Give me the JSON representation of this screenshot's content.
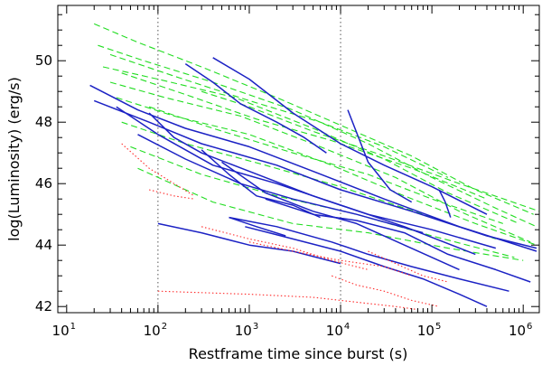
{
  "chart_data": {
    "type": "line",
    "title": "",
    "xlabel": "Restframe time since burst (s)",
    "ylabel": "log(Luminosity) (erg/s)",
    "xscale": "log",
    "xlim": [
      8,
      1500000
    ],
    "ylim": [
      41.8,
      51.8
    ],
    "x_ticks": [
      {
        "value": 10,
        "base": "10",
        "exp": "1"
      },
      {
        "value": 100,
        "base": "10",
        "exp": "2"
      },
      {
        "value": 1000,
        "base": "10",
        "exp": "3"
      },
      {
        "value": 10000,
        "base": "10",
        "exp": "4"
      },
      {
        "value": 100000,
        "base": "10",
        "exp": "5"
      },
      {
        "value": 1000000,
        "base": "10",
        "exp": "6"
      }
    ],
    "y_ticks": [
      {
        "value": 42,
        "label": "42"
      },
      {
        "value": 44,
        "label": "44"
      },
      {
        "value": 46,
        "label": "46"
      },
      {
        "value": 48,
        "label": "48"
      },
      {
        "value": 50,
        "label": "50"
      }
    ],
    "reference_lines_x": [
      100,
      10000
    ],
    "grid": false,
    "legend": "none",
    "colors": {
      "green": "#22dd22",
      "blue": "#1c22c4",
      "red": "#ff2a2a",
      "ref": "#555555"
    },
    "series": [
      {
        "color": "green",
        "style": "dashed",
        "x": [
          20,
          60,
          300,
          2000,
          10000,
          60000,
          300000,
          1300000
        ],
        "y": [
          51.2,
          50.6,
          49.8,
          48.8,
          47.9,
          46.9,
          45.8,
          45.0
        ]
      },
      {
        "color": "green",
        "style": "dashed",
        "x": [
          22,
          70,
          400,
          3000,
          20000,
          100000,
          500000,
          1400000
        ],
        "y": [
          50.5,
          50.0,
          49.3,
          48.4,
          47.3,
          46.2,
          45.2,
          44.6
        ]
      },
      {
        "color": "green",
        "style": "dashed",
        "x": [
          25,
          100,
          700,
          5000,
          30000,
          150000,
          900000
        ],
        "y": [
          49.8,
          49.4,
          48.8,
          47.8,
          46.8,
          45.7,
          44.7
        ]
      },
      {
        "color": "green",
        "style": "dashed",
        "x": [
          30,
          120,
          800,
          6000,
          40000,
          200000,
          1200000
        ],
        "y": [
          49.3,
          48.8,
          48.2,
          47.2,
          46.2,
          45.1,
          44.1
        ]
      },
      {
        "color": "green",
        "style": "dashed",
        "x": [
          35,
          150,
          1000,
          8000,
          50000,
          300000,
          1400000
        ],
        "y": [
          48.8,
          48.2,
          47.6,
          46.6,
          45.6,
          44.7,
          44.0
        ]
      },
      {
        "color": "green",
        "style": "dashed",
        "x": [
          40,
          200,
          1500,
          10000,
          80000,
          500000
        ],
        "y": [
          48.0,
          47.3,
          46.6,
          45.9,
          45.0,
          44.2
        ]
      },
      {
        "color": "green",
        "style": "dashed",
        "x": [
          50,
          300,
          2000,
          15000,
          100000,
          800000
        ],
        "y": [
          47.2,
          46.3,
          45.6,
          45.0,
          44.3,
          43.6
        ]
      },
      {
        "color": "green",
        "style": "dashed",
        "x": [
          60,
          400,
          3000,
          20000,
          150000,
          1000000
        ],
        "y": [
          46.5,
          45.4,
          44.7,
          44.4,
          43.9,
          43.5
        ]
      },
      {
        "color": "green",
        "style": "dashed",
        "x": [
          30,
          150,
          1000,
          6000,
          30000,
          150000
        ],
        "y": [
          50.2,
          49.5,
          48.7,
          48.0,
          47.2,
          46.2
        ]
      },
      {
        "color": "green",
        "style": "dashed",
        "x": [
          40,
          200,
          1200,
          8000,
          60000,
          400000
        ],
        "y": [
          49.6,
          48.9,
          48.1,
          47.4,
          46.5,
          45.5
        ]
      },
      {
        "color": "green",
        "style": "dashed",
        "x": [
          300,
          1000,
          5000,
          30000,
          200000,
          1500000
        ],
        "y": [
          49.0,
          48.5,
          47.7,
          46.9,
          46.0,
          45.1
        ]
      },
      {
        "color": "green",
        "style": "dashed",
        "x": [
          80,
          400,
          3000,
          20000,
          100000,
          600000
        ],
        "y": [
          48.5,
          47.8,
          47.0,
          46.3,
          45.5,
          44.7
        ]
      },
      {
        "color": "blue",
        "style": "solid",
        "x": [
          18,
          60,
          200,
          1000,
          5000,
          30000,
          200000,
          1400000
        ],
        "y": [
          49.2,
          48.4,
          47.8,
          47.2,
          46.4,
          45.5,
          44.6,
          43.8
        ]
      },
      {
        "color": "blue",
        "style": "solid",
        "x": [
          20,
          80,
          300,
          2000,
          10000,
          60000,
          400000,
          1400000
        ],
        "y": [
          48.7,
          48.0,
          47.3,
          46.6,
          45.8,
          45.1,
          44.3,
          43.9
        ]
      },
      {
        "color": "blue",
        "style": "solid",
        "x": [
          35,
          100,
          400,
          2000,
          10000,
          50000,
          300000
        ],
        "y": [
          48.5,
          47.6,
          46.6,
          46.0,
          45.3,
          44.6,
          43.7
        ]
      },
      {
        "color": "blue",
        "style": "solid",
        "x": [
          60,
          200,
          800,
          3000,
          15000,
          80000
        ],
        "y": [
          47.6,
          46.8,
          46.0,
          45.5,
          45.0,
          44.4
        ]
      },
      {
        "color": "blue",
        "style": "solid",
        "x": [
          80,
          150,
          300,
          1000,
          5000,
          20000,
          100000,
          500000
        ],
        "y": [
          48.3,
          47.5,
          47.0,
          46.4,
          45.6,
          45.0,
          44.5,
          43.9
        ]
      },
      {
        "color": "blue",
        "style": "solid",
        "x": [
          200,
          400,
          800,
          2000,
          4000,
          7000
        ],
        "y": [
          49.9,
          49.3,
          48.6,
          48.0,
          47.5,
          47.0
        ]
      },
      {
        "color": "blue",
        "style": "solid",
        "x": [
          400,
          1000,
          3000,
          10000,
          30000,
          100000,
          400000
        ],
        "y": [
          50.1,
          49.4,
          48.3,
          47.3,
          46.6,
          45.9,
          45.0
        ]
      },
      {
        "color": "blue",
        "style": "solid",
        "x": [
          300,
          600,
          1200,
          3000,
          6000
        ],
        "y": [
          47.1,
          46.3,
          45.6,
          45.3,
          44.9
        ]
      },
      {
        "color": "blue",
        "style": "solid",
        "x": [
          500,
          1500,
          5000,
          15000,
          50000,
          200000
        ],
        "y": [
          46.7,
          45.7,
          45.1,
          44.7,
          44.0,
          43.2
        ]
      },
      {
        "color": "blue",
        "style": "solid",
        "x": [
          1500,
          5000,
          15000,
          50000,
          150000,
          500000,
          1200000
        ],
        "y": [
          45.5,
          45.0,
          44.8,
          44.4,
          43.7,
          43.2,
          42.8
        ]
      },
      {
        "color": "blue",
        "style": "solid",
        "x": [
          600,
          2000,
          8000,
          20000,
          60000,
          200000,
          700000
        ],
        "y": [
          44.9,
          44.6,
          44.1,
          43.7,
          43.3,
          42.9,
          42.5
        ]
      },
      {
        "color": "blue",
        "style": "solid",
        "x": [
          900,
          3000,
          10000,
          30000,
          80000,
          200000,
          400000
        ],
        "y": [
          44.6,
          44.2,
          43.8,
          43.3,
          42.9,
          42.4,
          42.0
        ]
      },
      {
        "color": "blue",
        "style": "solid",
        "x": [
          100,
          300,
          1000,
          3000,
          10000
        ],
        "y": [
          44.7,
          44.4,
          44.0,
          43.8,
          43.4
        ]
      },
      {
        "color": "blue",
        "style": "solid",
        "x": [
          12000,
          20000,
          35000,
          60000
        ],
        "y": [
          48.4,
          46.7,
          45.8,
          45.4
        ]
      },
      {
        "color": "blue",
        "style": "solid",
        "x": [
          600,
          1200,
          2500
        ],
        "y": [
          44.9,
          44.6,
          44.3
        ]
      },
      {
        "color": "blue",
        "style": "solid",
        "x": [
          120000,
          140000,
          160000
        ],
        "y": [
          45.8,
          45.4,
          44.9
        ]
      },
      {
        "color": "red",
        "style": "dotted",
        "x": [
          40,
          80,
          150,
          250
        ],
        "y": [
          47.3,
          46.5,
          46.0,
          45.6
        ]
      },
      {
        "color": "red",
        "style": "dotted",
        "x": [
          80,
          150,
          250
        ],
        "y": [
          45.8,
          45.6,
          45.5
        ]
      },
      {
        "color": "red",
        "style": "dotted",
        "x": [
          300,
          1000,
          3000,
          8000,
          20000
        ],
        "y": [
          44.6,
          44.2,
          43.9,
          43.5,
          43.2
        ]
      },
      {
        "color": "red",
        "style": "dotted",
        "x": [
          1000,
          3000,
          10000,
          30000,
          60000
        ],
        "y": [
          44.1,
          43.8,
          43.5,
          43.3,
          43.0
        ]
      },
      {
        "color": "red",
        "style": "dotted",
        "x": [
          100,
          1000,
          5000,
          10000,
          20000,
          40000,
          70000
        ],
        "y": [
          42.5,
          42.4,
          42.3,
          42.2,
          42.1,
          42.0,
          41.9
        ]
      },
      {
        "color": "red",
        "style": "dotted",
        "x": [
          8000,
          15000,
          30000,
          60000,
          120000
        ],
        "y": [
          43.0,
          42.7,
          42.5,
          42.2,
          42.0
        ]
      },
      {
        "color": "red",
        "style": "dotted",
        "x": [
          20000,
          40000,
          80000,
          150000
        ],
        "y": [
          43.8,
          43.4,
          43.0,
          42.8
        ]
      }
    ]
  }
}
